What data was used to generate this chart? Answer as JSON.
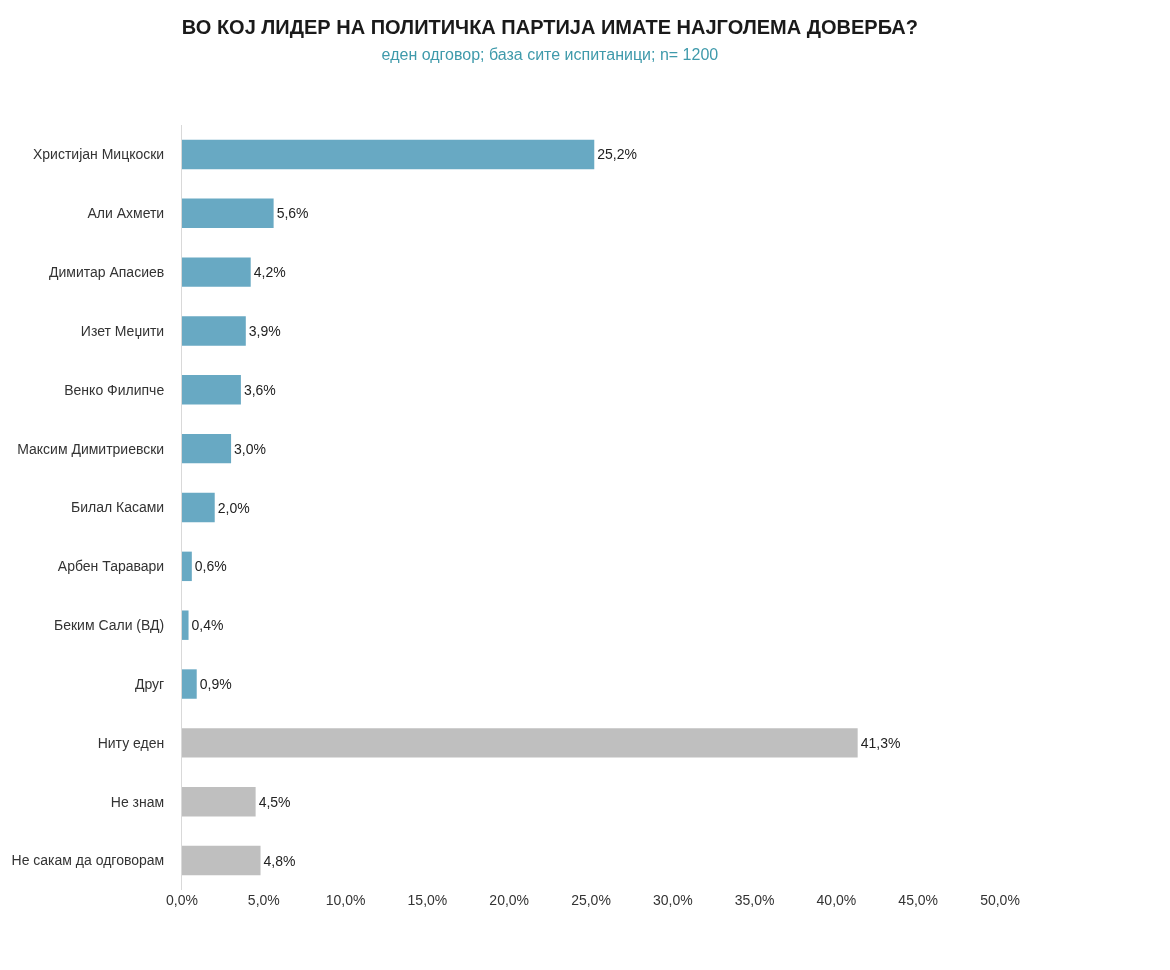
{
  "chart_data": {
    "type": "bar",
    "orientation": "horizontal",
    "title": "ВО КОЈ ЛИДЕР НА ПОЛИТИЧКА ПАРТИЈА ИМАТЕ НАЈГОЛЕМА ДОВЕРБА?",
    "subtitle": "еден одговор; база сите испитаници; n= 1200",
    "categories": [
      "Христијан Мицкоски",
      "Али Ахмети",
      "Димитар Апасиев",
      "Изет Меџити",
      "Венко Филипче",
      "Максим Димитриевски",
      "Билал Касами",
      "Арбен Таравари",
      "Беким Сали (ВД)",
      "Друг",
      "Ниту еден",
      "Не знам",
      "Не сакам да одговорам"
    ],
    "values": [
      25.2,
      5.6,
      4.2,
      3.9,
      3.6,
      3.0,
      2.0,
      0.6,
      0.4,
      0.9,
      41.3,
      4.5,
      4.8
    ],
    "value_labels": [
      "25,2%",
      "5,6%",
      "4,2%",
      "3,9%",
      "3,6%",
      "3,0%",
      "2,0%",
      "0,6%",
      "0,4%",
      "0,9%",
      "41,3%",
      "4,5%",
      "4,8%"
    ],
    "colors": [
      "#68a9c3",
      "#68a9c3",
      "#68a9c3",
      "#68a9c3",
      "#68a9c3",
      "#68a9c3",
      "#68a9c3",
      "#68a9c3",
      "#68a9c3",
      "#68a9c3",
      "#bfbfbf",
      "#bfbfbf",
      "#bfbfbf"
    ],
    "xlim": [
      0,
      50
    ],
    "xticks": [
      {
        "value": 0,
        "label": "0,0%"
      },
      {
        "value": 5,
        "label": "5,0%"
      },
      {
        "value": 10,
        "label": "10,0%"
      },
      {
        "value": 15,
        "label": "15,0%"
      },
      {
        "value": 20,
        "label": "20,0%"
      },
      {
        "value": 25,
        "label": "25,0%"
      },
      {
        "value": 30,
        "label": "30,0%"
      },
      {
        "value": 35,
        "label": "35,0%"
      },
      {
        "value": 40,
        "label": "40,0%"
      },
      {
        "value": 45,
        "label": "45,0%"
      },
      {
        "value": 50,
        "label": "50,0%"
      }
    ]
  }
}
